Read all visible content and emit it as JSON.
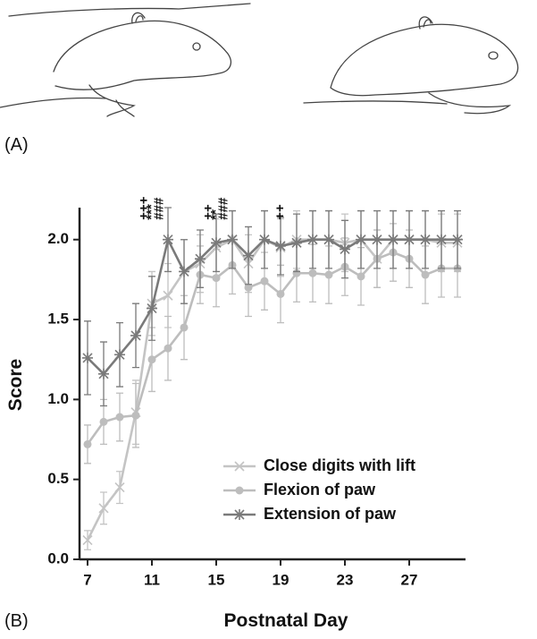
{
  "chart_data": {
    "type": "line",
    "panel_labels": [
      "(A)",
      "(B)"
    ],
    "x_label": "Postnatal Day",
    "y_label": "Score",
    "x": [
      7,
      8,
      9,
      10,
      11,
      12,
      13,
      14,
      15,
      16,
      17,
      18,
      19,
      20,
      21,
      22,
      23,
      24,
      25,
      26,
      27,
      28,
      29,
      30
    ],
    "xlim": [
      6.5,
      30.5
    ],
    "xticks": [
      7,
      11,
      15,
      19,
      23,
      27
    ],
    "ylim": [
      0,
      2.2
    ],
    "yticks": [
      {
        "value": 0,
        "label": "0.0"
      },
      0.5,
      {
        "value": 1,
        "label": "1.0"
      },
      1.5,
      {
        "value": 2,
        "label": "2.0"
      }
    ],
    "series": [
      {
        "name": "Close digits with lift",
        "color": "#c4c4c4",
        "marker": "x",
        "values": [
          0.12,
          0.32,
          0.45,
          0.92,
          1.6,
          1.65,
          1.8,
          1.85,
          1.95,
          2.0,
          1.85,
          2.0,
          1.95,
          2.0,
          2.0,
          2.0,
          1.98,
          2.0,
          1.88,
          2.0,
          2.0,
          2.0,
          1.98,
          1.98
        ],
        "errors": [
          0.06,
          0.1,
          0.1,
          0.2,
          0.2,
          0.2,
          0.2,
          0.18,
          0.18,
          0.18,
          0.18,
          0.18,
          0.18,
          0.18,
          0.18,
          0.18,
          0.18,
          0.18,
          0.18,
          0.18,
          0.18,
          0.18,
          0.18,
          0.18
        ]
      },
      {
        "name": "Flexion of paw",
        "color": "#bdbdbd",
        "marker": "circle",
        "values": [
          0.72,
          0.86,
          0.89,
          0.9,
          1.25,
          1.32,
          1.45,
          1.78,
          1.76,
          1.84,
          1.7,
          1.74,
          1.66,
          1.79,
          1.79,
          1.78,
          1.83,
          1.77,
          1.88,
          1.92,
          1.88,
          1.78,
          1.82,
          1.82
        ],
        "errors": [
          0.12,
          0.14,
          0.15,
          0.2,
          0.2,
          0.2,
          0.2,
          0.18,
          0.18,
          0.18,
          0.18,
          0.18,
          0.18,
          0.18,
          0.18,
          0.18,
          0.18,
          0.18,
          0.18,
          0.18,
          0.18,
          0.18,
          0.18,
          0.18
        ]
      },
      {
        "name": "Extension of paw",
        "color": "#7a7a7a",
        "marker": "asterisk",
        "values": [
          1.26,
          1.16,
          1.28,
          1.4,
          1.57,
          2.0,
          1.8,
          1.88,
          1.98,
          2.0,
          1.9,
          2.0,
          1.96,
          1.98,
          2.0,
          2.0,
          1.94,
          2.0,
          2.0,
          2.0,
          2.0,
          2.0,
          2.0,
          2.0
        ],
        "errors": [
          0.23,
          0.2,
          0.2,
          0.2,
          0.2,
          0.2,
          0.2,
          0.18,
          0.18,
          0.18,
          0.18,
          0.18,
          0.18,
          0.18,
          0.18,
          0.18,
          0.18,
          0.18,
          0.18,
          0.18,
          0.18,
          0.18,
          0.18,
          0.18
        ]
      }
    ],
    "annotations": [
      {
        "x": 11,
        "marks": [
          "+++",
          "***",
          "###"
        ]
      },
      {
        "x": 15,
        "marks": [
          "++",
          "**",
          "###"
        ]
      },
      {
        "x": 19,
        "marks": [
          "++"
        ]
      }
    ]
  }
}
